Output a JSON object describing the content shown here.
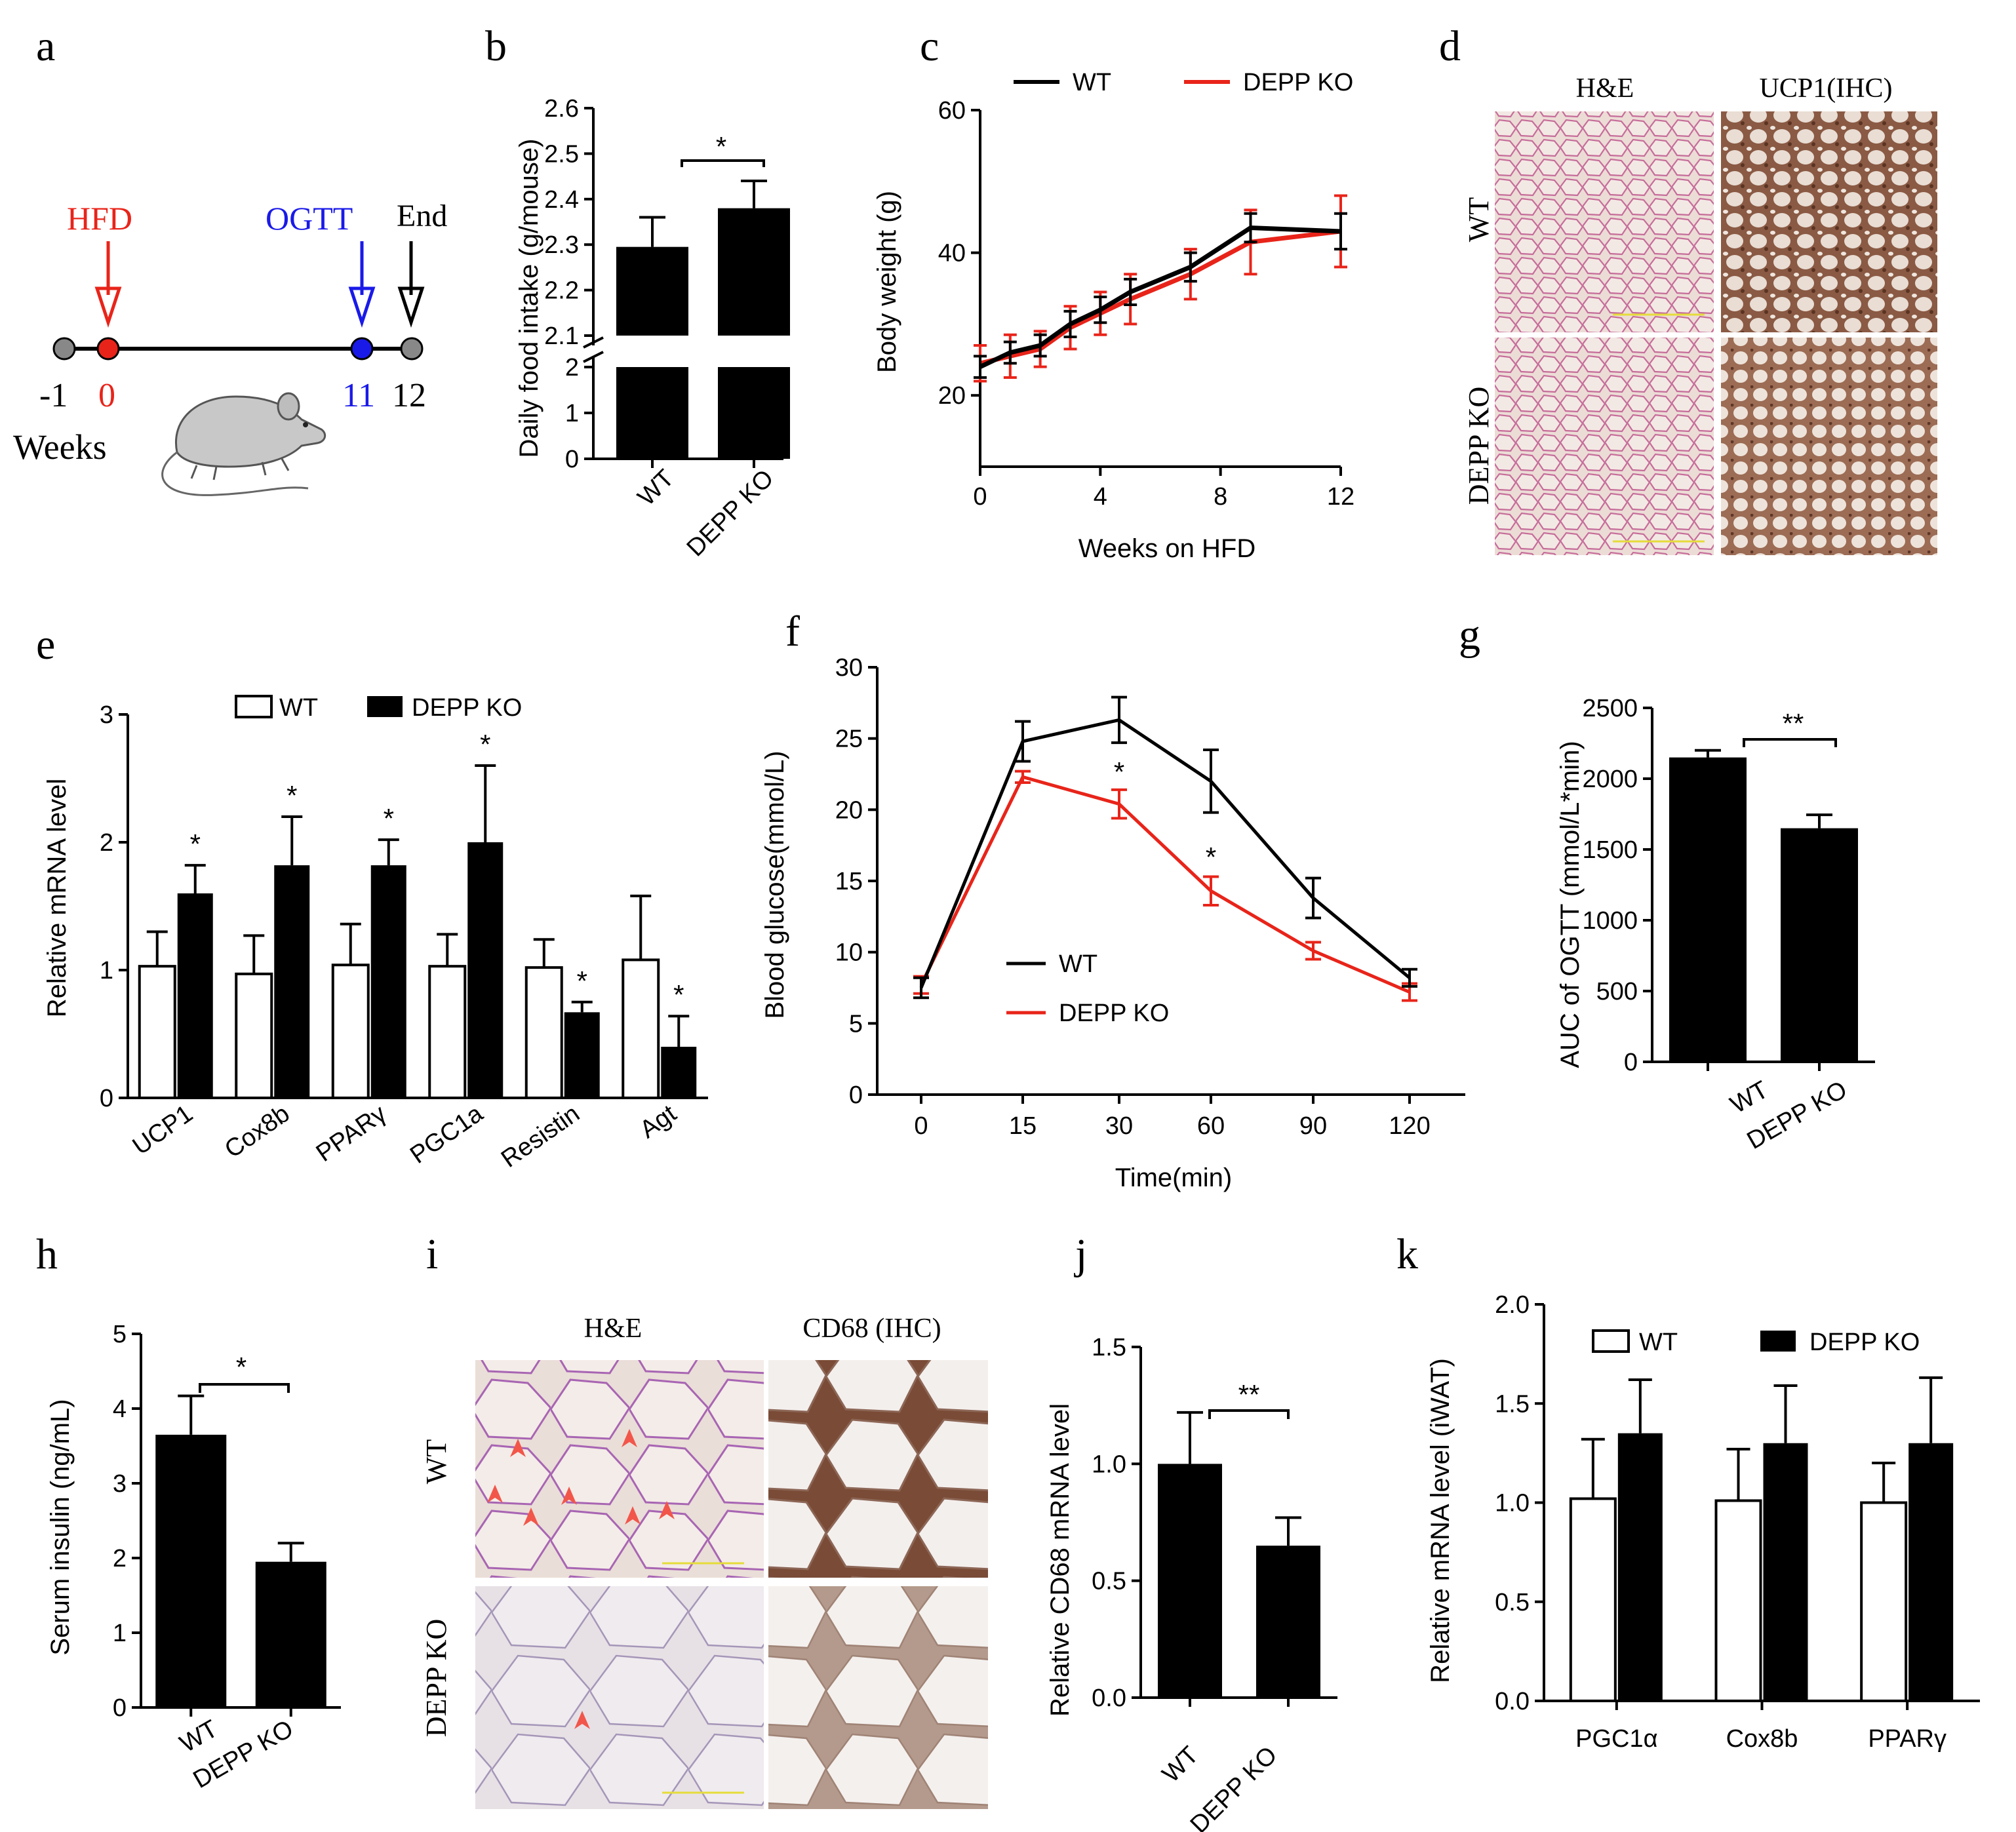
{
  "colors": {
    "wt": "#000000",
    "ko": "#e8241a",
    "ogtt": "#1a1ae8",
    "bar_fill": "#000000",
    "open_bar": "#ffffff"
  },
  "panel_labels": [
    "a",
    "b",
    "c",
    "d",
    "e",
    "f",
    "g",
    "h",
    "i",
    "j",
    "k"
  ],
  "panel_a": {
    "hfd": "HFD",
    "ogtt": "OGTT",
    "end": "End",
    "t_minus1": "-1",
    "t0": "0",
    "t11": "11",
    "t12": "12",
    "weeks": "Weeks",
    "mouse_icon": "mouse-icon"
  },
  "panel_d": {
    "col1": "H&E",
    "col2": "UCP1(IHC)",
    "row1": "WT",
    "row2": "DEPP KO"
  },
  "panel_i": {
    "col1": "H&E",
    "col2": "CD68 (IHC)",
    "row1": "WT",
    "row2": "DEPP KO"
  },
  "chart_data": [
    {
      "id": "b",
      "type": "bar",
      "categories": [
        "WT",
        "DEPP KO"
      ],
      "values": [
        2.295,
        2.38
      ],
      "errors": [
        0.065,
        0.06
      ],
      "ylabel": "Daily food intake (g/mouse)",
      "ylim_lower": [
        0,
        2
      ],
      "ylim_upper": [
        2.1,
        2.6
      ],
      "yticks_lower": [
        "0",
        "1",
        "2"
      ],
      "yticks_upper": [
        "2.1",
        "2.2",
        "2.3",
        "2.4",
        "2.5",
        "2.6"
      ],
      "significance": "*"
    },
    {
      "id": "c",
      "type": "line",
      "xlabel": "Weeks on HFD",
      "ylabel": "Body weight (g)",
      "xlim": [
        0,
        12
      ],
      "ylim": [
        10,
        60
      ],
      "xticks": [
        "0",
        "4",
        "8",
        "12"
      ],
      "yticks": [
        "20",
        "40",
        "60"
      ],
      "series": [
        {
          "name": "WT",
          "x": [
            0,
            1,
            2,
            3,
            4,
            5,
            7,
            9,
            12
          ],
          "y": [
            24,
            26,
            27,
            30,
            32,
            34.5,
            38,
            43.5,
            43
          ],
          "err": [
            1.5,
            1.5,
            1.5,
            1.8,
            1.8,
            1.8,
            2,
            2,
            2.5
          ]
        },
        {
          "name": "DEPP KO",
          "x": [
            0,
            1,
            2,
            3,
            4,
            5,
            7,
            9,
            12
          ],
          "y": [
            24.5,
            25.5,
            26.5,
            29.5,
            31.5,
            33.5,
            37,
            41.5,
            43
          ],
          "err": [
            2.5,
            3,
            2.5,
            3,
            3,
            3.5,
            3.5,
            4.5,
            5
          ]
        }
      ]
    },
    {
      "id": "e",
      "type": "bar",
      "categories": [
        "UCP1",
        "Cox8b",
        "PPARγ",
        "PGC1a",
        "Resistin",
        "Agt"
      ],
      "ylabel": "Relative mRNA level",
      "ylim": [
        0,
        3
      ],
      "yticks": [
        "0",
        "1",
        "2",
        "3"
      ],
      "series": [
        {
          "name": "WT",
          "values": [
            1.03,
            0.97,
            1.04,
            1.03,
            1.02,
            1.08
          ],
          "errors": [
            0.27,
            0.3,
            0.32,
            0.25,
            0.22,
            0.5
          ]
        },
        {
          "name": "DEPP KO",
          "values": [
            1.6,
            1.82,
            1.82,
            2.0,
            0.67,
            0.4
          ],
          "errors": [
            0.22,
            0.38,
            0.2,
            0.6,
            0.08,
            0.24
          ]
        }
      ],
      "significance": [
        "*",
        "*",
        "*",
        "*",
        "*",
        "*"
      ]
    },
    {
      "id": "f",
      "type": "line",
      "xlabel": "Time(min)",
      "ylabel": "Blood glucose(mmol/L)",
      "ylim": [
        0,
        30
      ],
      "xticks": [
        "0",
        "15",
        "30",
        "60",
        "90",
        "120"
      ],
      "yticks": [
        "0",
        "5",
        "10",
        "15",
        "20",
        "25",
        "30"
      ],
      "series": [
        {
          "name": "WT",
          "y": [
            7.5,
            24.8,
            26.3,
            22.0,
            13.8,
            8.2
          ],
          "err": [
            0.7,
            1.4,
            1.6,
            2.2,
            1.4,
            0.6
          ]
        },
        {
          "name": "DEPP KO",
          "y": [
            7.7,
            22.3,
            20.4,
            14.3,
            10.1,
            7.2
          ],
          "err": [
            0.6,
            0.4,
            1.0,
            1.0,
            0.6,
            0.6
          ]
        }
      ],
      "significance_labels": [
        "*",
        "*"
      ]
    },
    {
      "id": "g",
      "type": "bar",
      "categories": [
        "WT",
        "DEPP KO"
      ],
      "values": [
        2150,
        1650
      ],
      "errors": [
        50,
        95
      ],
      "ylabel": "AUC of OGTT (mmol/L*min)",
      "ylim": [
        0,
        2500
      ],
      "yticks": [
        "0",
        "500",
        "1000",
        "1500",
        "2000",
        "2500"
      ],
      "significance": "**"
    },
    {
      "id": "h",
      "type": "bar",
      "categories": [
        "WT",
        "DEPP KO"
      ],
      "values": [
        3.65,
        1.95
      ],
      "errors": [
        0.52,
        0.25
      ],
      "ylabel": "Serum insulin (ng/mL)",
      "ylim": [
        0,
        5
      ],
      "yticks": [
        "0",
        "1",
        "2",
        "3",
        "4",
        "5"
      ],
      "significance": "*"
    },
    {
      "id": "j",
      "type": "bar",
      "categories": [
        "WT",
        "DEPP KO"
      ],
      "values": [
        1.0,
        0.65
      ],
      "errors": [
        0.22,
        0.12
      ],
      "ylabel": "Relative CD68 mRNA level",
      "ylim": [
        0,
        1.5
      ],
      "yticks": [
        "0.0",
        "0.5",
        "1.0",
        "1.5"
      ],
      "significance": "**"
    },
    {
      "id": "k",
      "type": "bar",
      "categories": [
        "PGC1α",
        "Cox8b",
        "PPARγ"
      ],
      "ylabel": "Relative mRNA level (iWAT)",
      "ylim": [
        0,
        2.0
      ],
      "yticks": [
        "0.0",
        "0.5",
        "1.0",
        "1.5",
        "2.0"
      ],
      "series": [
        {
          "name": "WT",
          "values": [
            1.02,
            1.01,
            1.0
          ],
          "errors": [
            0.3,
            0.26,
            0.2
          ]
        },
        {
          "name": "DEPP KO",
          "values": [
            1.35,
            1.3,
            1.3
          ],
          "errors": [
            0.27,
            0.29,
            0.33
          ]
        }
      ]
    }
  ]
}
